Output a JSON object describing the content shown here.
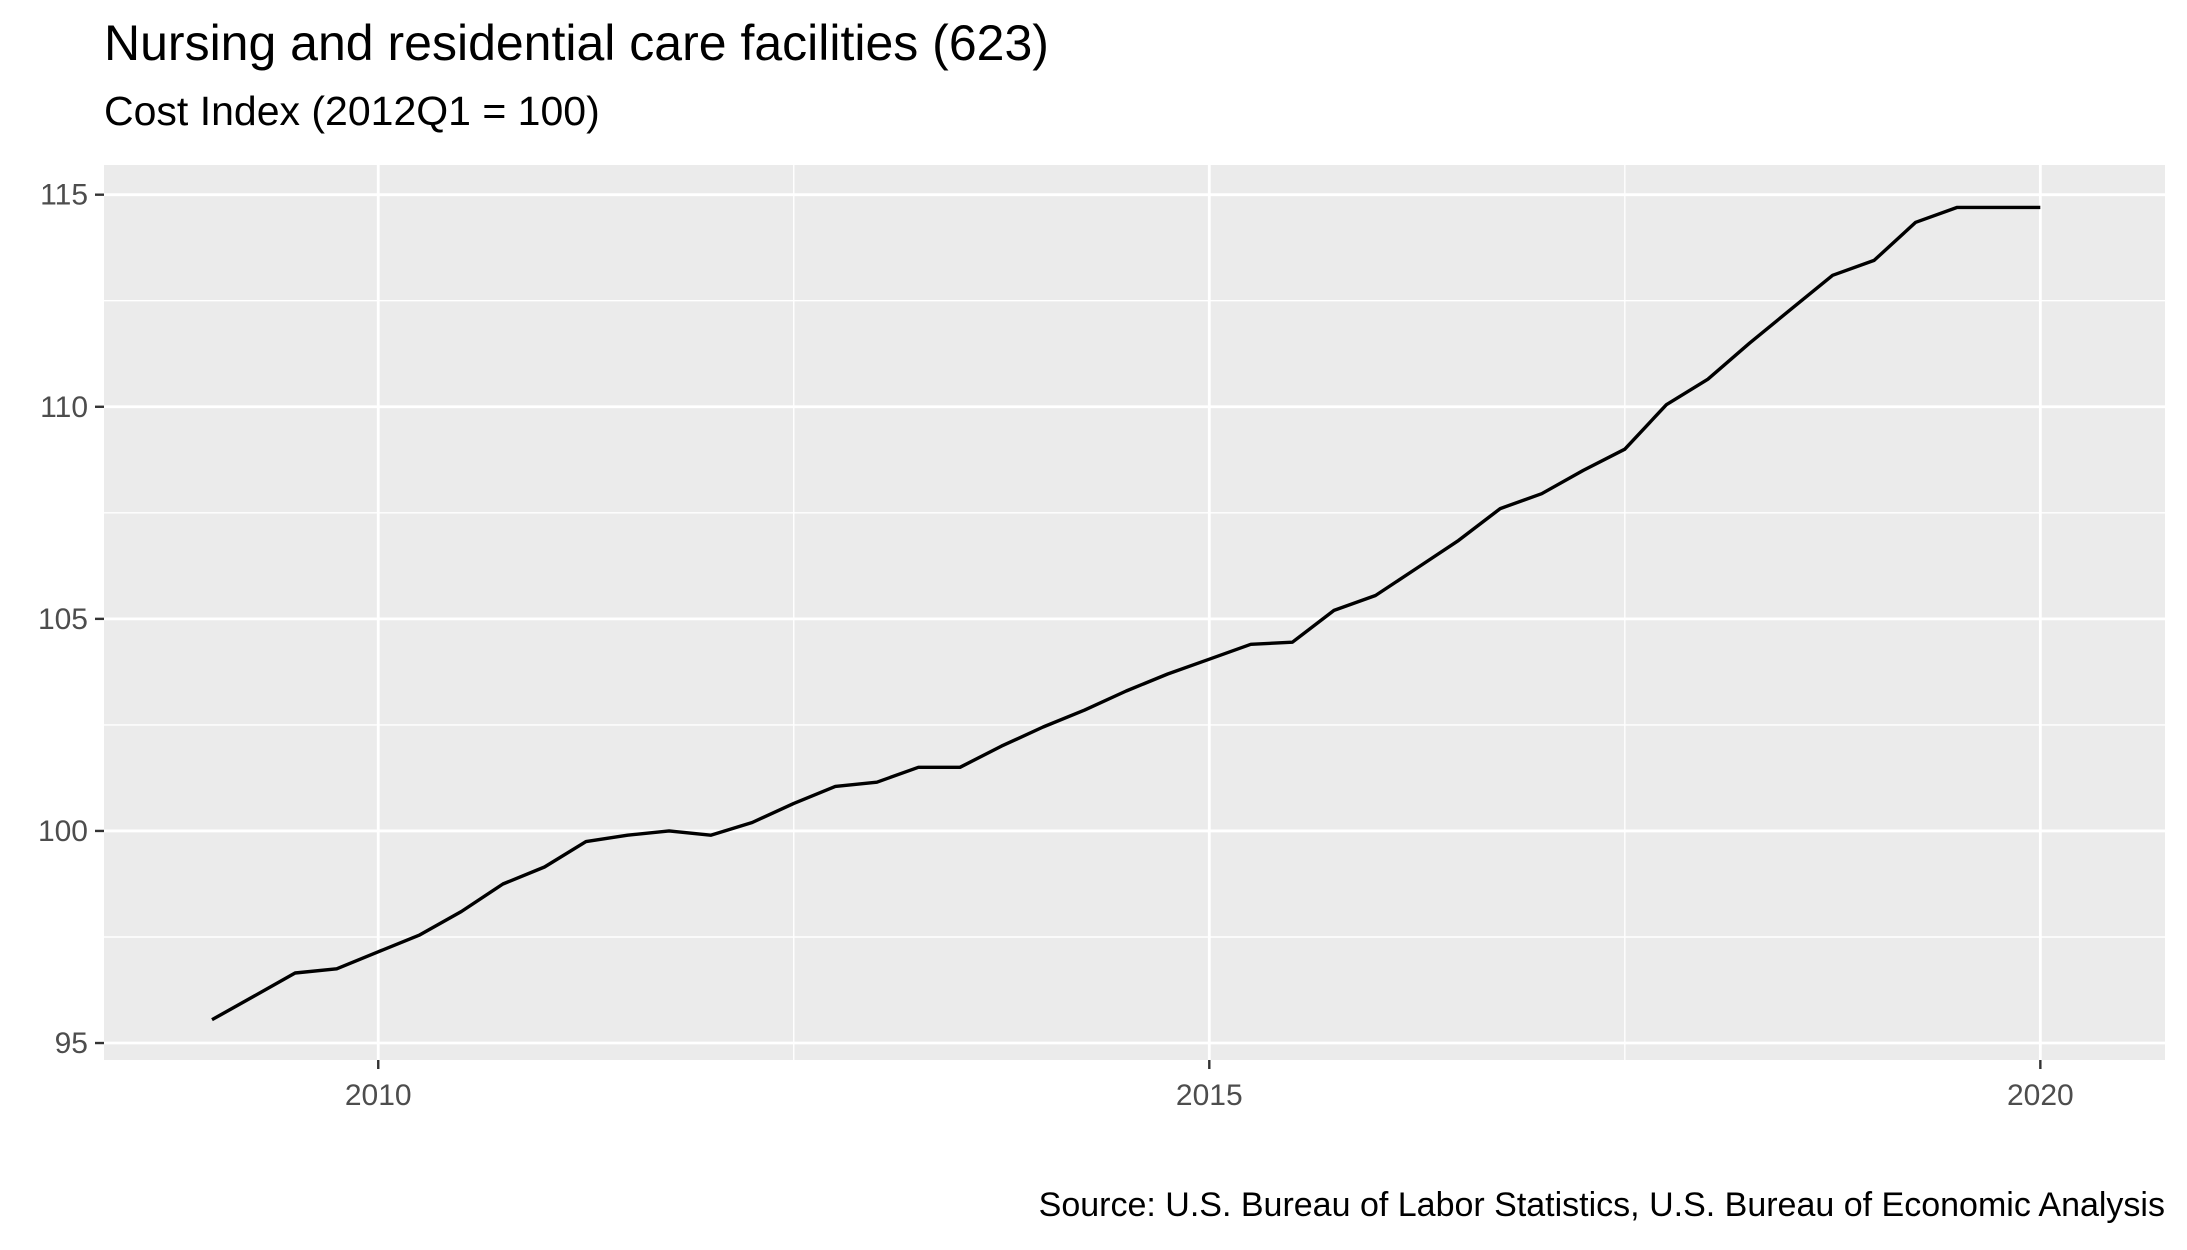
{
  "chart_data": {
    "type": "line",
    "title": "Nursing and residential care facilities (623)",
    "subtitle": "Cost Index (2012Q1 = 100)",
    "caption": "Source: U.S. Bureau of Labor Statistics, U.S. Bureau of Economic Analysis",
    "xlabel": "",
    "ylabel": "",
    "xlim": [
      2008.35,
      2020.75
    ],
    "ylim": [
      94.6,
      115.7
    ],
    "x_ticks": [
      2010,
      2015,
      2020
    ],
    "x_tick_labels": [
      "2010",
      "2015",
      "2020"
    ],
    "y_ticks": [
      95,
      100,
      105,
      110,
      115
    ],
    "y_tick_labels": [
      "95",
      "100",
      "105",
      "110",
      "115"
    ],
    "grid": true,
    "legend": "none",
    "colors": {
      "panel": "#ebebeb",
      "grid": "#ffffff",
      "line": "#000000"
    },
    "series": [
      {
        "x": [
          2009.0,
          2009.25,
          2009.5,
          2009.75,
          2010.0,
          2010.25,
          2010.5,
          2010.75,
          2011.0,
          2011.25,
          2011.5,
          2011.75,
          2012.0,
          2012.25,
          2012.5,
          2012.75,
          2013.0,
          2013.25,
          2013.5,
          2013.75,
          2014.0,
          2014.25,
          2014.5,
          2014.75,
          2015.0,
          2015.25,
          2015.5,
          2015.75,
          2016.0,
          2016.25,
          2016.5,
          2016.75,
          2017.0,
          2017.25,
          2017.5,
          2017.75,
          2018.0,
          2018.25,
          2018.5,
          2018.75,
          2019.0,
          2019.25,
          2019.5,
          2019.75,
          2020.0
        ],
        "values": [
          95.55,
          96.1,
          96.65,
          96.75,
          97.15,
          97.55,
          98.1,
          98.75,
          99.15,
          99.75,
          99.9,
          100.0,
          99.9,
          100.2,
          100.65,
          101.05,
          101.15,
          101.5,
          101.5,
          102.0,
          102.45,
          102.85,
          103.3,
          103.7,
          104.05,
          104.4,
          104.45,
          105.2,
          105.55,
          106.2,
          106.85,
          107.6,
          107.95,
          108.5,
          109.0,
          110.05,
          110.65,
          111.5,
          112.3,
          113.1,
          113.45,
          114.35,
          114.7,
          114.7,
          114.7
        ]
      }
    ]
  }
}
